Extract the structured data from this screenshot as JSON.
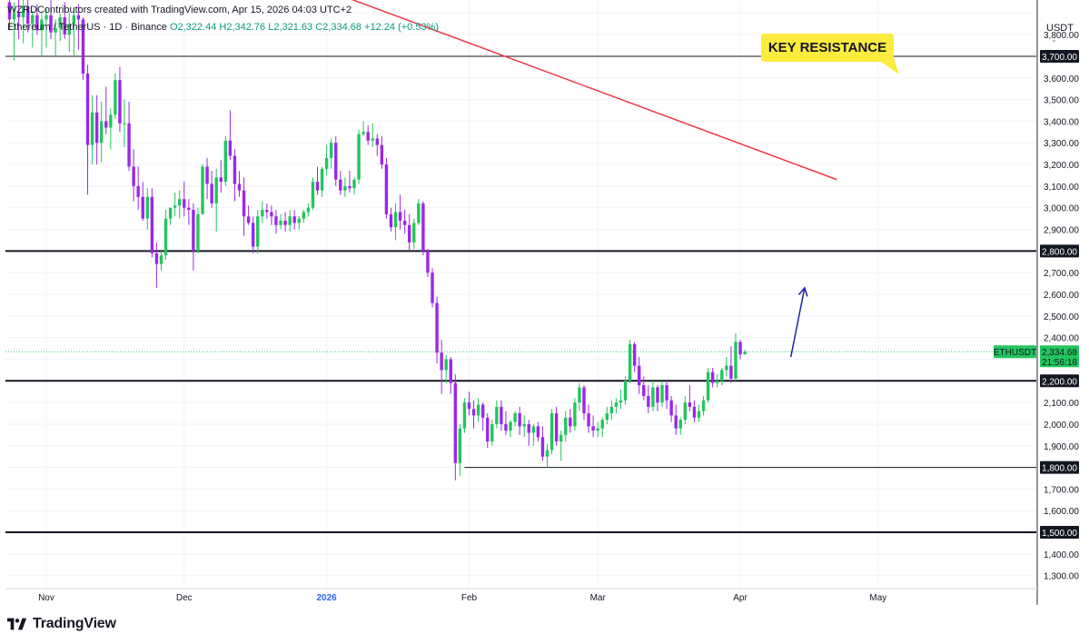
{
  "header": {
    "credit": "WZRDContributors created with TradingView.com, Apr 15, 2026 04:03 UTC+2",
    "symbol": "Ethereum / TetherUS · 1D · Binance",
    "open": "O2,322.44",
    "high": "H2,342.76",
    "low": "L2,321.63",
    "close": "C2,334.68",
    "change": "+12.24 (+0.53%)"
  },
  "price_axis": {
    "unit": "USDT",
    "ticks": [
      "3,800.00",
      "3,600.00",
      "3,500.00",
      "3,400.00",
      "3,300.00",
      "3,200.00",
      "3,100.00",
      "3,000.00",
      "2,900.00",
      "2,700.00",
      "2,600.00",
      "2,500.00",
      "2,400.00",
      "2,100.00",
      "2,000.00",
      "1,900.00",
      "1,700.00",
      "1,600.00",
      "1,400.00",
      "1,300.00"
    ],
    "tick_values": [
      3800,
      3600,
      3500,
      3400,
      3300,
      3200,
      3100,
      3000,
      2900,
      2700,
      2600,
      2500,
      2400,
      2100,
      2000,
      1900,
      1700,
      1600,
      1400,
      1300
    ]
  },
  "logo": {
    "text": "TradingView"
  },
  "chart_data": {
    "type": "candlestick",
    "symbol": "ETHUSDT",
    "xlabels": [
      {
        "label": "Nov",
        "day": 8
      },
      {
        "label": "Dec",
        "day": 38
      },
      {
        "label": "2026",
        "day": 69,
        "bold": true
      },
      {
        "label": "Feb",
        "day": 100
      },
      {
        "label": "Mar",
        "day": 128
      },
      {
        "label": "Apr",
        "day": 159
      },
      {
        "label": "May",
        "day": 189
      }
    ],
    "y_range": [
      1240,
      3960
    ],
    "levels": [
      {
        "price": 3700,
        "label": "3,700.00",
        "color": "#131722",
        "width": 1
      },
      {
        "price": 2800,
        "label": "2,800.00",
        "color": "#131722",
        "width": 2
      },
      {
        "price": 2200,
        "label": "2,200.00",
        "color": "#131722",
        "width": 2
      },
      {
        "price": 1800,
        "label": "1,800.00",
        "color": "#131722",
        "width": 1,
        "start_day": 99
      },
      {
        "price": 1500,
        "label": "1,500.00",
        "color": "#131722",
        "width": 2
      }
    ],
    "trendline": {
      "color": "#f23645",
      "points": [
        [
          71,
          3990
        ],
        [
          180,
          3130
        ]
      ]
    },
    "last_price": {
      "value": 2334.68,
      "label": "2,334.68",
      "countdown": "21:56:18",
      "name": "ETHUSDT",
      "color": "#22c55e"
    },
    "annotation": {
      "text": "KEY RESISTANCE",
      "color": "#fdeb3d"
    },
    "arrow": {
      "color": "#1e22aa",
      "from": [
        170,
        2310
      ],
      "to": [
        173,
        2630
      ]
    },
    "colors": {
      "up": "#22c55e",
      "down": "#9c27e8"
    },
    "ohlc": [
      [
        3950,
        3970,
        3820,
        3870
      ],
      [
        3870,
        3950,
        3680,
        3900
      ],
      [
        3900,
        3970,
        3780,
        3880
      ],
      [
        3880,
        3960,
        3760,
        3930
      ],
      [
        3930,
        3980,
        3810,
        3850
      ],
      [
        3850,
        3910,
        3740,
        3890
      ],
      [
        3890,
        3940,
        3800,
        3820
      ],
      [
        3820,
        3900,
        3700,
        3870
      ],
      [
        3870,
        3920,
        3740,
        3890
      ],
      [
        3890,
        3960,
        3780,
        3810
      ],
      [
        3810,
        3870,
        3700,
        3830
      ],
      [
        3830,
        3900,
        3770,
        3880
      ],
      [
        3880,
        3950,
        3780,
        3800
      ],
      [
        3800,
        3900,
        3720,
        3850
      ],
      [
        3850,
        3920,
        3700,
        3890
      ],
      [
        3890,
        3940,
        3730,
        3870
      ],
      [
        3870,
        3880,
        3590,
        3620
      ],
      [
        3620,
        3660,
        3060,
        3290
      ],
      [
        3290,
        3520,
        3200,
        3440
      ],
      [
        3440,
        3520,
        3200,
        3300
      ],
      [
        3300,
        3490,
        3210,
        3400
      ],
      [
        3400,
        3560,
        3340,
        3370
      ],
      [
        3370,
        3460,
        3270,
        3430
      ],
      [
        3430,
        3620,
        3410,
        3590
      ],
      [
        3590,
        3650,
        3350,
        3390
      ],
      [
        3390,
        3500,
        3280,
        3390
      ],
      [
        3390,
        3490,
        3170,
        3190
      ],
      [
        3190,
        3270,
        3030,
        3100
      ],
      [
        3100,
        3190,
        2990,
        3050
      ],
      [
        3050,
        3120,
        2940,
        2950
      ],
      [
        2950,
        3090,
        2900,
        3050
      ],
      [
        3050,
        3090,
        2770,
        2790
      ],
      [
        2790,
        2840,
        2630,
        2740
      ],
      [
        2740,
        2800,
        2710,
        2780
      ],
      [
        2780,
        2990,
        2760,
        2950
      ],
      [
        2950,
        3000,
        2920,
        3000
      ],
      [
        3000,
        3070,
        2960,
        3010
      ],
      [
        3010,
        3080,
        2950,
        3040
      ],
      [
        3040,
        3120,
        2960,
        3000
      ],
      [
        3000,
        3040,
        2920,
        2990
      ],
      [
        2990,
        3020,
        2710,
        2800
      ],
      [
        2800,
        3000,
        2790,
        2970
      ],
      [
        2970,
        3200,
        2970,
        3190
      ],
      [
        3190,
        3230,
        3040,
        3110
      ],
      [
        3110,
        3170,
        3000,
        3020
      ],
      [
        3020,
        3180,
        2890,
        3140
      ],
      [
        3140,
        3220,
        3070,
        3120
      ],
      [
        3120,
        3330,
        3100,
        3310
      ],
      [
        3310,
        3450,
        3220,
        3240
      ],
      [
        3240,
        3270,
        3030,
        3110
      ],
      [
        3110,
        3170,
        3050,
        3080
      ],
      [
        3080,
        3140,
        2870,
        2960
      ],
      [
        2960,
        3010,
        2920,
        2930
      ],
      [
        2930,
        2960,
        2790,
        2820
      ],
      [
        2820,
        2990,
        2790,
        2960
      ],
      [
        2960,
        3030,
        2930,
        2990
      ],
      [
        2990,
        3020,
        2950,
        2980
      ],
      [
        2980,
        3010,
        2920,
        2960
      ],
      [
        2960,
        2990,
        2880,
        2920
      ],
      [
        2920,
        2970,
        2900,
        2940
      ],
      [
        2940,
        2980,
        2890,
        2920
      ],
      [
        2920,
        2990,
        2890,
        2960
      ],
      [
        2960,
        2990,
        2900,
        2930
      ],
      [
        2930,
        2960,
        2900,
        2950
      ],
      [
        2950,
        2990,
        2930,
        2980
      ],
      [
        2980,
        3020,
        2960,
        3000
      ],
      [
        3000,
        3140,
        2990,
        3120
      ],
      [
        3120,
        3190,
        3060,
        3080
      ],
      [
        3080,
        3190,
        3050,
        3180
      ],
      [
        3180,
        3290,
        3150,
        3230
      ],
      [
        3230,
        3320,
        3180,
        3300
      ],
      [
        3300,
        3330,
        3100,
        3130
      ],
      [
        3130,
        3170,
        3060,
        3080
      ],
      [
        3080,
        3140,
        3050,
        3100
      ],
      [
        3100,
        3170,
        3070,
        3090
      ],
      [
        3090,
        3140,
        3060,
        3130
      ],
      [
        3130,
        3360,
        3110,
        3340
      ],
      [
        3340,
        3400,
        3330,
        3350
      ],
      [
        3350,
        3380,
        3290,
        3310
      ],
      [
        3310,
        3390,
        3280,
        3320
      ],
      [
        3320,
        3340,
        3240,
        3290
      ],
      [
        3290,
        3330,
        3180,
        3200
      ],
      [
        3200,
        3230,
        2950,
        2970
      ],
      [
        2970,
        3000,
        2890,
        2910
      ],
      [
        2910,
        3020,
        2850,
        2980
      ],
      [
        2980,
        3060,
        2900,
        2940
      ],
      [
        2940,
        2990,
        2880,
        2920
      ],
      [
        2920,
        2970,
        2800,
        2840
      ],
      [
        2840,
        2950,
        2810,
        2930
      ],
      [
        2930,
        3040,
        2920,
        3020
      ],
      [
        3020,
        3030,
        2780,
        2800
      ],
      [
        2800,
        2810,
        2680,
        2700
      ],
      [
        2700,
        2720,
        2540,
        2560
      ],
      [
        2560,
        2590,
        2280,
        2330
      ],
      [
        2330,
        2390,
        2140,
        2250
      ],
      [
        2250,
        2320,
        2190,
        2300
      ],
      [
        2300,
        2310,
        2140,
        2190
      ],
      [
        2190,
        2230,
        1740,
        1820
      ],
      [
        1820,
        2000,
        1760,
        1980
      ],
      [
        1980,
        2120,
        1960,
        2100
      ],
      [
        2100,
        2150,
        2040,
        2070
      ],
      [
        2070,
        2110,
        1980,
        2040
      ],
      [
        2040,
        2120,
        2010,
        2090
      ],
      [
        2090,
        2100,
        1970,
        2030
      ],
      [
        2030,
        2050,
        1890,
        1920
      ],
      [
        1920,
        2020,
        1900,
        2000
      ],
      [
        2000,
        2110,
        1980,
        2080
      ],
      [
        2080,
        2110,
        1970,
        2000
      ],
      [
        2000,
        2060,
        1950,
        1970
      ],
      [
        1970,
        2020,
        1940,
        2010
      ],
      [
        2010,
        2060,
        1990,
        2050
      ],
      [
        2050,
        2080,
        1950,
        1990
      ],
      [
        1990,
        2040,
        1940,
        2000
      ],
      [
        2000,
        2020,
        1900,
        1960
      ],
      [
        1960,
        2000,
        1900,
        1990
      ],
      [
        1990,
        2010,
        1920,
        1940
      ],
      [
        1940,
        1990,
        1830,
        1850
      ],
      [
        1850,
        1910,
        1800,
        1880
      ],
      [
        1880,
        2070,
        1860,
        2050
      ],
      [
        2050,
        2080,
        1900,
        1920
      ],
      [
        1920,
        1970,
        1830,
        1950
      ],
      [
        1950,
        2060,
        1920,
        2030
      ],
      [
        2030,
        2070,
        1960,
        1990
      ],
      [
        1990,
        2120,
        1970,
        2100
      ],
      [
        2100,
        2190,
        2060,
        2170
      ],
      [
        2170,
        2180,
        2020,
        2050
      ],
      [
        2050,
        2090,
        1960,
        1990
      ],
      [
        1990,
        2040,
        1940,
        1970
      ],
      [
        1970,
        2010,
        1940,
        1980
      ],
      [
        1980,
        2030,
        1940,
        2020
      ],
      [
        2020,
        2080,
        2000,
        2050
      ],
      [
        2050,
        2110,
        2020,
        2080
      ],
      [
        2080,
        2120,
        2050,
        2100
      ],
      [
        2100,
        2160,
        2070,
        2110
      ],
      [
        2110,
        2220,
        2090,
        2200
      ],
      [
        2200,
        2390,
        2190,
        2370
      ],
      [
        2370,
        2380,
        2240,
        2270
      ],
      [
        2270,
        2310,
        2140,
        2180
      ],
      [
        2180,
        2220,
        2110,
        2130
      ],
      [
        2130,
        2180,
        2050,
        2080
      ],
      [
        2080,
        2200,
        2060,
        2170
      ],
      [
        2170,
        2180,
        2060,
        2100
      ],
      [
        2100,
        2200,
        2080,
        2180
      ],
      [
        2180,
        2200,
        2070,
        2110
      ],
      [
        2110,
        2130,
        2010,
        2040
      ],
      [
        2040,
        2090,
        1950,
        1980
      ],
      [
        1980,
        2030,
        1950,
        2020
      ],
      [
        2020,
        2130,
        2000,
        2100
      ],
      [
        2100,
        2180,
        2060,
        2080
      ],
      [
        2080,
        2110,
        2010,
        2030
      ],
      [
        2030,
        2090,
        2010,
        2060
      ],
      [
        2060,
        2130,
        2040,
        2110
      ],
      [
        2110,
        2260,
        2100,
        2240
      ],
      [
        2240,
        2260,
        2170,
        2190
      ],
      [
        2190,
        2230,
        2170,
        2200
      ],
      [
        2200,
        2260,
        2180,
        2250
      ],
      [
        2250,
        2310,
        2220,
        2270
      ],
      [
        2270,
        2360,
        2190,
        2210
      ],
      [
        2210,
        2420,
        2200,
        2380
      ],
      [
        2380,
        2390,
        2300,
        2322
      ],
      [
        2322.44,
        2342.76,
        2321.63,
        2334.68
      ]
    ]
  }
}
